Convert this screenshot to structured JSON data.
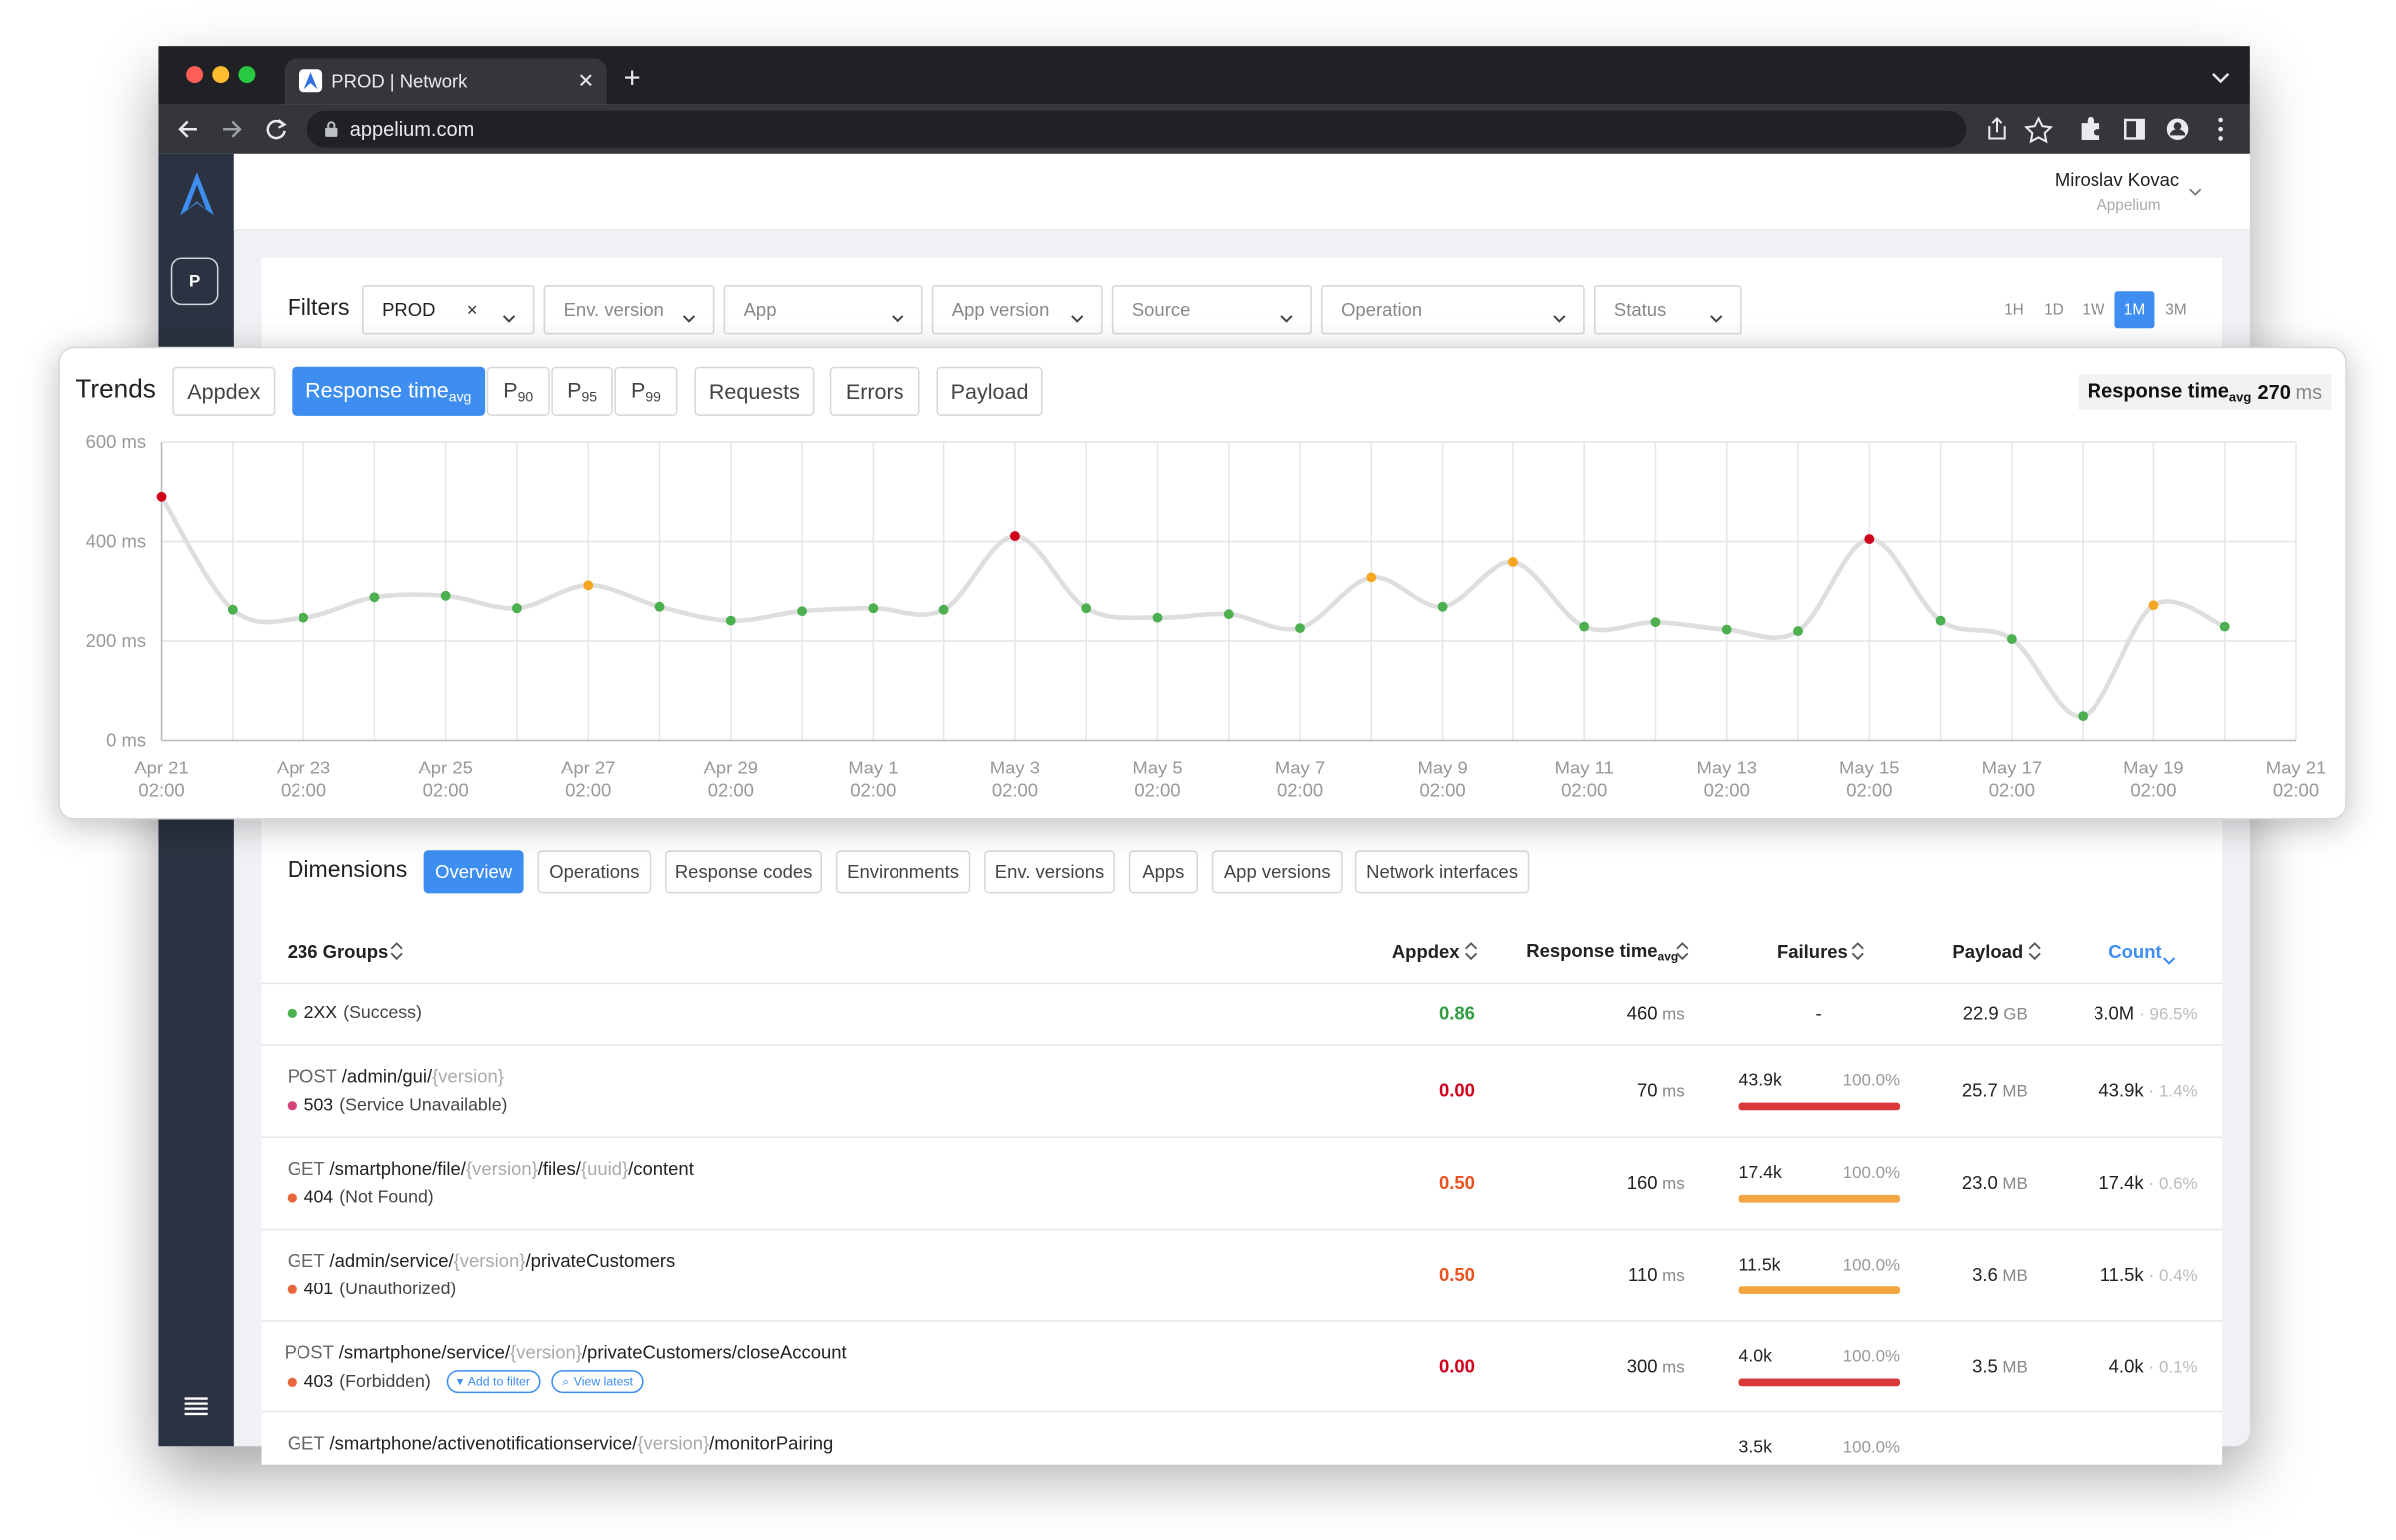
{
  "browser": {
    "tab_title": "PROD | Network",
    "url": "appelium.com"
  },
  "sidebar": {
    "project": "P"
  },
  "header": {
    "user_name": "Miroslav Kovac",
    "organization": "Appelium"
  },
  "filters": {
    "label": "Filters",
    "dropdowns": [
      "PROD",
      "Env. version",
      "App",
      "App version",
      "Source",
      "Operation",
      "Status"
    ],
    "time_ranges": [
      "1H",
      "1D",
      "1W",
      "1M",
      "3M"
    ],
    "selected_time_range": "1M"
  },
  "trends": {
    "title": "Trends",
    "tabs": [
      {
        "label": "Appdex"
      },
      {
        "label": "Response time",
        "sub": "avg"
      },
      {
        "label": "P",
        "sub": "90"
      },
      {
        "label": "P",
        "sub": "95"
      },
      {
        "label": "P",
        "sub": "99"
      },
      {
        "label": "Requests"
      },
      {
        "label": "Errors"
      },
      {
        "label": "Payload"
      }
    ],
    "selected_tab": "Response time",
    "summary": {
      "label": "Response time",
      "sub": "avg",
      "value": "270",
      "unit": "ms"
    }
  },
  "chart_data": {
    "type": "line",
    "categories": [
      [
        "Apr 21",
        "02:00"
      ],
      null,
      [
        "Apr 23",
        "02:00"
      ],
      null,
      [
        "Apr 25",
        "02:00"
      ],
      null,
      [
        "Apr 27",
        "02:00"
      ],
      null,
      [
        "Apr 29",
        "02:00"
      ],
      null,
      [
        "May 1",
        "02:00"
      ],
      null,
      [
        "May 3",
        "02:00"
      ],
      null,
      [
        "May 5",
        "02:00"
      ],
      null,
      [
        "May 7",
        "02:00"
      ],
      null,
      [
        "May 9",
        "02:00"
      ],
      null,
      [
        "May 11",
        "02:00"
      ],
      null,
      [
        "May 13",
        "02:00"
      ],
      null,
      [
        "May 15",
        "02:00"
      ],
      null,
      [
        "May 17",
        "02:00"
      ],
      null,
      [
        "May 19",
        "02:00"
      ],
      null,
      [
        "May 21",
        "02:00"
      ]
    ],
    "values": [
      490,
      263,
      247,
      288,
      291,
      266,
      312,
      269,
      241,
      260,
      266,
      263,
      411,
      266,
      247,
      254,
      226,
      328,
      269,
      359,
      229,
      238,
      223,
      220,
      405,
      241,
      204,
      49,
      272,
      229,
      null
    ],
    "point_colors": [
      "#d0021b",
      "#4caf50",
      "#4caf50",
      "#4caf50",
      "#4caf50",
      "#4caf50",
      "#f5a623",
      "#4caf50",
      "#4caf50",
      "#4caf50",
      "#4caf50",
      "#4caf50",
      "#d0021b",
      "#4caf50",
      "#4caf50",
      "#4caf50",
      "#4caf50",
      "#f5a623",
      "#4caf50",
      "#f5a623",
      "#4caf50",
      "#4caf50",
      "#4caf50",
      "#4caf50",
      "#d0021b",
      "#4caf50",
      "#4caf50",
      "#4caf50",
      "#f5a623",
      "#4caf50",
      null
    ],
    "line_color": "#dedede",
    "ylim": [
      0,
      600
    ],
    "yticks": [
      {
        "value": 0,
        "label": "0 ms"
      },
      {
        "value": 200,
        "label": "200 ms"
      },
      {
        "value": 400,
        "label": "400 ms"
      },
      {
        "value": 600,
        "label": "600 ms"
      }
    ],
    "grid": true
  },
  "dimensions": {
    "title": "Dimensions",
    "tabs": [
      "Overview",
      "Operations",
      "Response codes",
      "Environments",
      "Env. versions",
      "Apps",
      "App versions",
      "Network interfaces"
    ],
    "selected_tab": "Overview",
    "table": {
      "columns": [
        {
          "label": "236 Groups"
        },
        {
          "label": "Appdex"
        },
        {
          "label": "Response time",
          "sub": "avg"
        },
        {
          "label": "Failures"
        },
        {
          "label": "Payload"
        },
        {
          "label": "Count"
        }
      ],
      "rows": [
        {
          "status": "2XX",
          "status_text": "(Success)",
          "status_color": "#4caf50",
          "appdex": "0.86",
          "appdex_color": "#2e9e3f",
          "response": "460",
          "response_unit": "ms",
          "failures": "-",
          "payload": "22.9",
          "payload_unit": "GB",
          "count": "3.0M",
          "count_share": "96.5%"
        },
        {
          "method": "POST",
          "path": [
            "/admin/gui/",
            "{version}"
          ],
          "status": "503",
          "status_text": "(Service Unavailable)",
          "status_color": "#d6457a",
          "appdex": "0.00",
          "appdex_color": "#d0021b",
          "response": "70",
          "response_unit": "ms",
          "failures": "43.9k",
          "failure_share": 100,
          "failure_share_label": "100.0%",
          "failure_color": "#d9383a",
          "payload": "25.7",
          "payload_unit": "MB",
          "count": "43.9k",
          "count_share": "1.4%"
        },
        {
          "method": "GET",
          "path": [
            "/smartphone/file/",
            "{version}",
            "/files/",
            "{uuid}",
            "/content"
          ],
          "status": "404",
          "status_text": "(Not Found)",
          "status_color": "#e8673c",
          "appdex": "0.50",
          "appdex_color": "#e8531f",
          "response": "160",
          "response_unit": "ms",
          "failures": "17.4k",
          "failure_share": 100,
          "failure_share_label": "100.0%",
          "failure_color": "#f2a541",
          "payload": "23.0",
          "payload_unit": "MB",
          "count": "17.4k",
          "count_share": "0.6%"
        },
        {
          "method": "GET",
          "path": [
            "/admin/service/",
            "{version}",
            "/privateCustomers"
          ],
          "status": "401",
          "status_text": "(Unauthorized)",
          "status_color": "#e8673c",
          "appdex": "0.50",
          "appdex_color": "#e8531f",
          "response": "110",
          "response_unit": "ms",
          "failures": "11.5k",
          "failure_share": 100,
          "failure_share_label": "100.0%",
          "failure_color": "#f2a541",
          "payload": "3.6",
          "payload_unit": "MB",
          "count": "11.5k",
          "count_share": "0.4%"
        },
        {
          "method": "POST",
          "path": [
            "/smartphone/service/",
            "{version}",
            "/privateCustomers/closeAccount"
          ],
          "status": "403",
          "status_text": "(Forbidden)",
          "status_color": "#e8673c",
          "appdex": "0.00",
          "appdex_color": "#d0021b",
          "response": "300",
          "response_unit": "ms",
          "failures": "4.0k",
          "failure_share": 100,
          "failure_share_label": "100.0%",
          "failure_color": "#d9383a",
          "payload": "3.5",
          "payload_unit": "MB",
          "count": "4.0k",
          "count_share": "0.1%",
          "actions": [
            "Add to filter",
            "View latest"
          ]
        },
        {
          "method": "GET",
          "path": [
            "/smartphone/activenotificationservice/",
            "{version}",
            "/monitorPairing"
          ],
          "failures": "3.5k",
          "failure_share_label": "100.0%"
        }
      ]
    }
  }
}
